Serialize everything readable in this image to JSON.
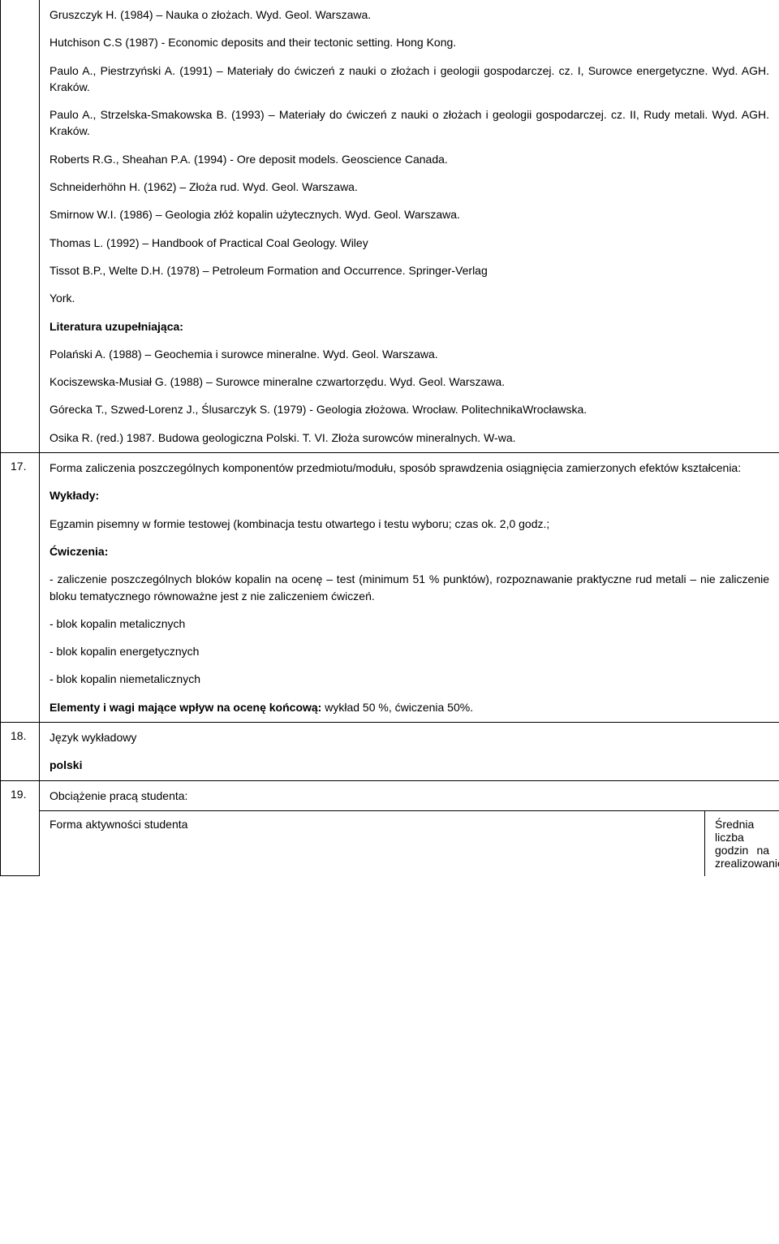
{
  "row16": {
    "paras": [
      "Gruszczyk H. (1984) – Nauka o złożach. Wyd. Geol. Warszawa.",
      "Hutchison C.S (1987) - Economic deposits and their tectonic setting. Hong Kong.",
      "Paulo A., Piestrzyński A. (1991) – Materiały do ćwiczeń z nauki o złożach i geologii gospodarczej. cz. I, Surowce energetyczne. Wyd. AGH. Kraków.",
      "Paulo A., Strzelska-Smakowska B. (1993) – Materiały do ćwiczeń z nauki o złożach i geologii gospodarczej.  cz. II, Rudy metali. Wyd. AGH. Kraków.",
      "Roberts R.G., Sheahan P.A. (1994) - Ore deposit models. Geoscience Canada.",
      "Schneiderhöhn H. (1962) – Złoża rud. Wyd. Geol. Warszawa.",
      "Smirnow W.I. (1986) – Geologia złóż kopalin użytecznych. Wyd. Geol. Warszawa.",
      "Thomas L. (1992) – Handbook of Practical Coal Geology. Wiley",
      "Tissot B.P., Welte D.H. (1978) – Petroleum Formation and Occurrence. Springer-Verlag",
      "York.",
      "Literatura uzupełniająca:",
      "Polański A. (1988) – Geochemia i surowce mineralne. Wyd. Geol. Warszawa.",
      "Kociszewska-Musiał G. (1988) – Surowce mineralne czwartorzędu. Wyd. Geol. Warszawa.",
      "Górecka T., Szwed-Lorenz J., Ślusarczyk S. (1979) - Geologia złożowa. Wrocław. PolitechnikaWrocławska.",
      "Osika R. (red.) 1987. Budowa geologiczna Polski. T. VI. Złoża surowców mineralnych. W-wa."
    ],
    "boldIdx": [
      10
    ]
  },
  "row17": {
    "num": "17.",
    "paras": [
      "Forma zaliczenia poszczególnych komponentów przedmiotu/modułu, sposób sprawdzenia osiągnięcia zamierzonych efektów kształcenia:",
      "Wykłady:",
      "Egzamin pisemny w formie testowej (kombinacja testu otwartego i testu wyboru; czas ok. 2,0 godz.;",
      "Ćwiczenia:",
      "- zaliczenie poszczególnych bloków kopalin na ocenę – test (minimum 51 % punktów), rozpoznawanie praktyczne rud metali – nie zaliczenie bloku tematycznego równoważne jest z nie zaliczeniem ćwiczeń.",
      "- blok kopalin metalicznych",
      "- blok kopalin energetycznych",
      "- blok kopalin niemetalicznych",
      "Elementy i wagi mające wpływ na ocenę końcową: wykład 50 %, ćwiczenia 50%."
    ],
    "boldLead": "Elementy i wagi mające wpływ na ocenę końcową:",
    "boldLeadRest": " wykład 50 %, ćwiczenia 50%.",
    "boldIdx": [
      1,
      3
    ]
  },
  "row18": {
    "num": "18.",
    "paras": [
      "Język wykładowy",
      "polski"
    ],
    "boldIdx": [
      1
    ]
  },
  "row19": {
    "num": "19.",
    "title": "Obciążenie pracą studenta:",
    "subLeft": "Forma aktywności studenta",
    "subRight": "Średnia liczba godzin na zrealizowanie"
  }
}
